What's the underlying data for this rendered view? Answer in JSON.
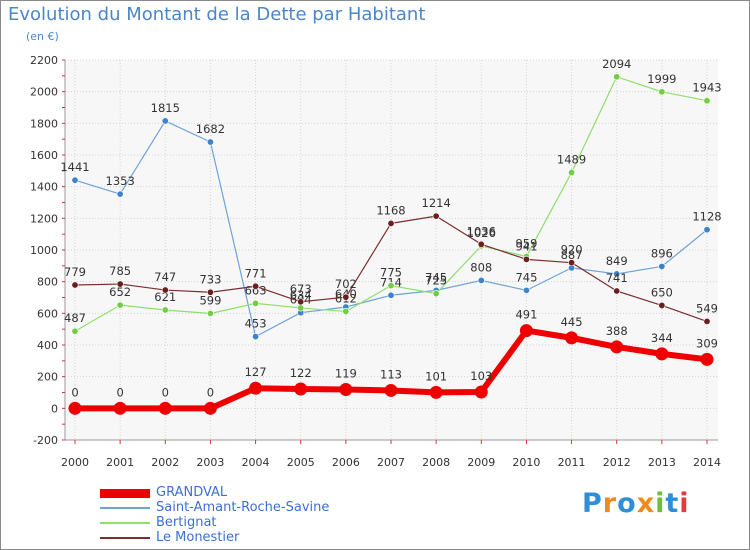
{
  "title": "Evolution du Montant de la Dette par Habitant",
  "subtitle": "(en €)",
  "logo": {
    "text": "Proxiti",
    "colors": [
      "#2f8fd6",
      "#f08a1c",
      "#2f8fd6",
      "#f08a1c",
      "#6cbf3c",
      "#2f8fd6",
      "#e23b3b"
    ]
  },
  "chart_data": {
    "type": "line",
    "title": "Evolution du Montant de la Dette par Habitant",
    "subtitle": "(en €)",
    "xlabel": "",
    "ylabel": "",
    "x": [
      "2000",
      "2001",
      "2002",
      "2003",
      "2004",
      "2005",
      "2006",
      "2007",
      "2008",
      "2009",
      "2010",
      "2011",
      "2012",
      "2013",
      "2014"
    ],
    "yticks": [
      -200,
      0,
      200,
      400,
      600,
      800,
      1000,
      1200,
      1400,
      1600,
      1800,
      2000,
      2200
    ],
    "ylim": [
      -200,
      2200
    ],
    "grid": true,
    "legend_position": "bottom-left",
    "series": [
      {
        "name": "Saint-Amant-Roche-Savine",
        "color": "#6fa3d8",
        "marker": "#3d83cc",
        "width": 1.2,
        "values": [
          1441,
          1353,
          1815,
          1682,
          453,
          604,
          640,
          714,
          745,
          808,
          745,
          887,
          849,
          896,
          1128
        ],
        "labels": [
          "1441",
          "1353",
          "1815",
          "1682",
          "453",
          "604",
          "640",
          "714",
          "745",
          "808",
          "745",
          "887",
          "849",
          "896",
          "1128"
        ]
      },
      {
        "name": "Bertignat",
        "color": "#90de6e",
        "marker": "#72cc44",
        "width": 1.2,
        "values": [
          487,
          652,
          621,
          599,
          663,
          634,
          612,
          775,
          725,
          1026,
          959,
          1489,
          2094,
          1999,
          1943
        ],
        "labels": [
          "487",
          "652",
          "621",
          "599",
          "663",
          "634",
          "612",
          "775",
          "725",
          "1026",
          "959",
          "1489",
          "2094",
          "1999",
          "1943"
        ]
      },
      {
        "name": "Le Monestier",
        "color": "#7c2e2e",
        "marker": "#6a1f1f",
        "width": 1.2,
        "values": [
          779,
          785,
          747,
          733,
          771,
          673,
          702,
          1168,
          1214,
          1036,
          941,
          920,
          741,
          650,
          549
        ],
        "labels": [
          "779",
          "785",
          "747",
          "733",
          "771",
          "673",
          "702",
          "1168",
          "1214",
          "1036",
          "941",
          "920",
          "741",
          "650",
          "549"
        ]
      },
      {
        "name": "GRANDVAL",
        "color": "#ee0000",
        "marker": "#ee0000",
        "width": 6,
        "values": [
          0,
          0,
          0,
          0,
          127,
          122,
          119,
          113,
          101,
          103,
          491,
          445,
          388,
          344,
          309
        ],
        "labels": [
          "0",
          "0",
          "0",
          "0",
          "127",
          "122",
          "119",
          "113",
          "101",
          "103",
          "491",
          "445",
          "388",
          "344",
          "309"
        ]
      }
    ],
    "legend": [
      {
        "name": "GRANDVAL",
        "color": "#ee0000",
        "thickness": 9
      },
      {
        "name": "Saint-Amant-Roche-Savine",
        "color": "#6fa3d8",
        "thickness": 2
      },
      {
        "name": "Bertignat",
        "color": "#90de6e",
        "thickness": 2
      },
      {
        "name": "Le Monestier",
        "color": "#7c2e2e",
        "thickness": 2
      }
    ]
  }
}
